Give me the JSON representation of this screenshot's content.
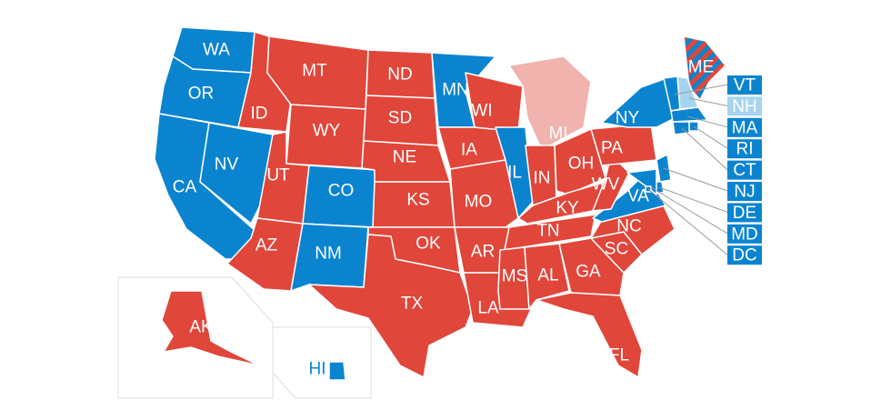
{
  "colors": {
    "dem": "#0b84d0",
    "rep": "#e0463a",
    "lean_dem": "#a6d4f0",
    "lean_rep": "#f0b3ad"
  },
  "states": {
    "WA": {
      "label": "WA",
      "party": "dem"
    },
    "OR": {
      "label": "OR",
      "party": "dem"
    },
    "CA": {
      "label": "CA",
      "party": "dem"
    },
    "NV": {
      "label": "NV",
      "party": "dem"
    },
    "ID": {
      "label": "ID",
      "party": "rep"
    },
    "MT": {
      "label": "MT",
      "party": "rep"
    },
    "WY": {
      "label": "WY",
      "party": "rep"
    },
    "UT": {
      "label": "UT",
      "party": "rep"
    },
    "AZ": {
      "label": "AZ",
      "party": "rep"
    },
    "CO": {
      "label": "CO",
      "party": "dem"
    },
    "NM": {
      "label": "NM",
      "party": "dem"
    },
    "ND": {
      "label": "ND",
      "party": "rep"
    },
    "SD": {
      "label": "SD",
      "party": "rep"
    },
    "NE": {
      "label": "NE",
      "party": "rep"
    },
    "KS": {
      "label": "KS",
      "party": "rep"
    },
    "OK": {
      "label": "OK",
      "party": "rep"
    },
    "TX": {
      "label": "TX",
      "party": "rep"
    },
    "MN": {
      "label": "MN",
      "party": "dem"
    },
    "IA": {
      "label": "IA",
      "party": "rep"
    },
    "MO": {
      "label": "MO",
      "party": "rep"
    },
    "AR": {
      "label": "AR",
      "party": "rep"
    },
    "LA": {
      "label": "LA",
      "party": "rep"
    },
    "WI": {
      "label": "WI",
      "party": "rep"
    },
    "IL": {
      "label": "IL",
      "party": "dem"
    },
    "MI": {
      "label": "MI",
      "party": "lean_rep"
    },
    "IN": {
      "label": "IN",
      "party": "rep"
    },
    "OH": {
      "label": "OH",
      "party": "rep"
    },
    "KY": {
      "label": "KY",
      "party": "rep"
    },
    "TN": {
      "label": "TN",
      "party": "rep"
    },
    "MS": {
      "label": "MS",
      "party": "rep"
    },
    "AL": {
      "label": "AL",
      "party": "rep"
    },
    "GA": {
      "label": "GA",
      "party": "rep"
    },
    "FL": {
      "label": "FL",
      "party": "rep"
    },
    "SC": {
      "label": "SC",
      "party": "rep"
    },
    "NC": {
      "label": "NC",
      "party": "rep"
    },
    "VA": {
      "label": "VA",
      "party": "dem"
    },
    "WV": {
      "label": "WV",
      "party": "rep"
    },
    "PA": {
      "label": "PA",
      "party": "rep"
    },
    "NY": {
      "label": "NY",
      "party": "dem"
    },
    "ME": {
      "label": "ME",
      "party": "split"
    },
    "AK": {
      "label": "AK",
      "party": "rep"
    },
    "HI": {
      "label": "HI",
      "party": "dem"
    }
  },
  "small_states": [
    {
      "label": "VT",
      "party": "dem"
    },
    {
      "label": "NH",
      "party": "lean_dem"
    },
    {
      "label": "MA",
      "party": "dem"
    },
    {
      "label": "RI",
      "party": "dem"
    },
    {
      "label": "CT",
      "party": "dem"
    },
    {
      "label": "NJ",
      "party": "dem"
    },
    {
      "label": "DE",
      "party": "dem"
    },
    {
      "label": "MD",
      "party": "dem"
    },
    {
      "label": "DC",
      "party": "dem"
    }
  ]
}
